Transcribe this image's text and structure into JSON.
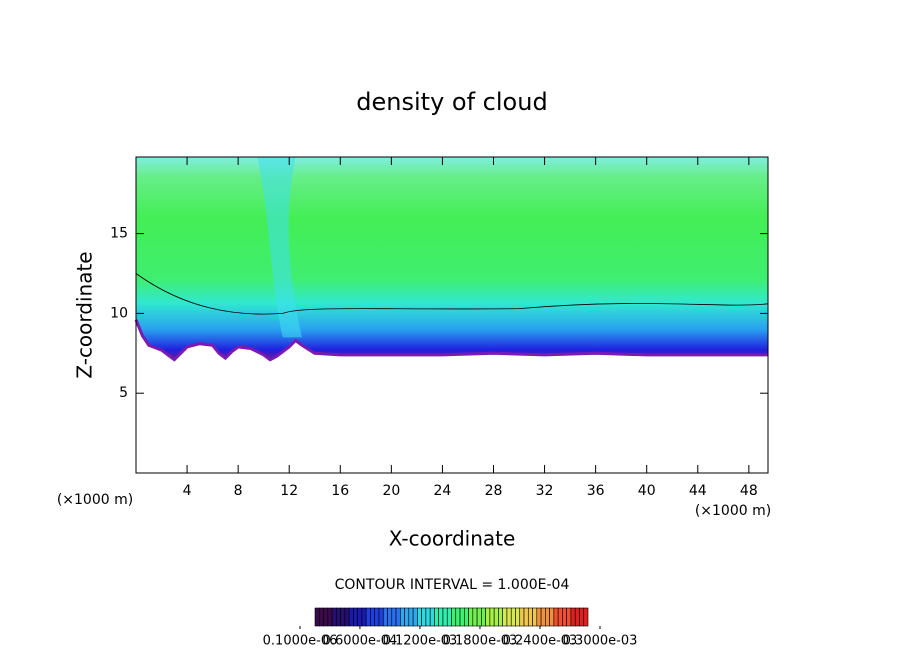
{
  "chart_data": {
    "type": "contour",
    "title": "density of cloud",
    "xlabel": "X-coordinate",
    "ylabel": "Z-coordinate",
    "x_unit": "(×1000 m)",
    "y_unit": "(×1000 m)",
    "contour_interval": "CONTOUR INTERVAL = 1.000E-04",
    "xlim": [
      0,
      49.5
    ],
    "ylim": [
      0,
      19.8
    ],
    "xticks": [
      4,
      8,
      12,
      16,
      20,
      24,
      28,
      32,
      36,
      40,
      44,
      48
    ],
    "yticks": [
      5,
      10,
      15
    ],
    "x": [
      0,
      0.5,
      1,
      2,
      2.5,
      3,
      4,
      5,
      6,
      6.5,
      7,
      7.5,
      8,
      9,
      10,
      10.5,
      11,
      12,
      12.5,
      13,
      14,
      16,
      20,
      24,
      28,
      32,
      36,
      40,
      44,
      48,
      49.5
    ],
    "values": [
      9.6,
      8.6,
      8.0,
      7.7,
      7.4,
      7.1,
      7.9,
      8.1,
      8.0,
      7.5,
      7.2,
      7.6,
      7.9,
      7.8,
      7.4,
      7.1,
      7.3,
      7.9,
      8.3,
      8.0,
      7.5,
      7.4,
      7.4,
      7.4,
      7.5,
      7.4,
      7.5,
      7.4,
      7.4,
      7.4,
      7.4
    ],
    "colorbar": {
      "colors": [
        "#3a0a4a",
        "#25106e",
        "#1a1ab0",
        "#1f3fe0",
        "#2a70f0",
        "#30a8f0",
        "#30d8e0",
        "#30f0b0",
        "#40f070",
        "#70f050",
        "#a8f048",
        "#d8e850",
        "#f0c850",
        "#f09040",
        "#f05030",
        "#e02020"
      ],
      "ticks": [
        {
          "value": 1e-07,
          "label": "0.1000e-06"
        },
        {
          "value": 6e-05,
          "label": "0.6000e-04"
        },
        {
          "value": 0.00012,
          "label": "0.1200e-03"
        },
        {
          "value": 0.00018,
          "label": "0.1800e-03"
        },
        {
          "value": 0.00024,
          "label": "0.2400e-03"
        },
        {
          "value": 0.0003,
          "label": "0.3000e-03"
        }
      ]
    }
  }
}
